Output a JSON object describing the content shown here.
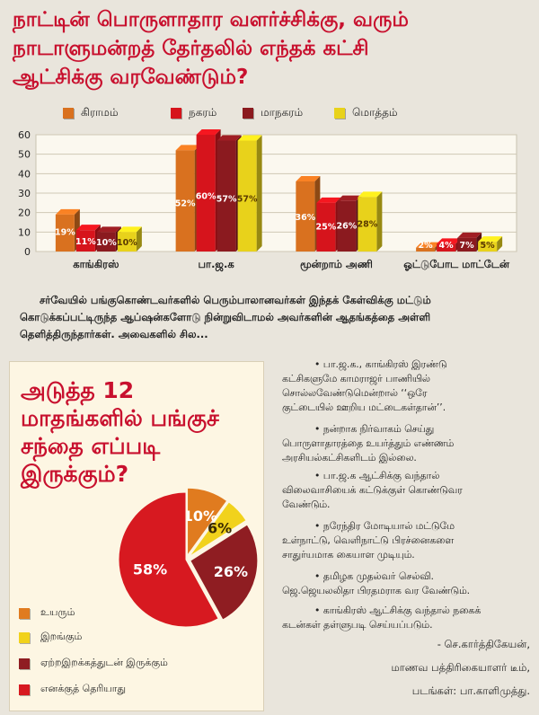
{
  "headline": {
    "line1": "நாட்டின் பொருளாதார வளர்ச்சிக்கு, வரும்",
    "line2": "நாடாளுமன்றத் தேர்தலில் எந்தக் கட்சி",
    "line3": "ஆட்சிக்கு வரவேண்டும்?"
  },
  "chart_data": [
    {
      "type": "bar",
      "title": "நாட்டின் பொருளாதார வளர்ச்சிக்கு, வரும் நாடாளுமன்றத் தேர்தலில் எந்தக் கட்சி ஆட்சிக்கு வரவேண்டும்?",
      "categories": [
        "காங்கிரஸ்",
        "பா.ஜ.க",
        "மூன்றாம் அணி",
        "ஓட்டுபோட மாட்டேன்"
      ],
      "series": [
        {
          "name": "கிராமம்",
          "values": [
            19,
            52,
            36,
            2
          ],
          "color": "#d9711f"
        },
        {
          "name": "நகரம்",
          "values": [
            11,
            60,
            25,
            4
          ],
          "color": "#d6141c"
        },
        {
          "name": "மாநகரம்",
          "values": [
            10,
            57,
            26,
            7
          ],
          "color": "#8b1a1f"
        },
        {
          "name": "மொத்தம்",
          "values": [
            10,
            57,
            28,
            5
          ],
          "color": "#e8d21b"
        }
      ],
      "ylim": [
        0,
        60
      ],
      "yticks": [
        "0",
        "10",
        "20",
        "30",
        "40",
        "50",
        "60"
      ],
      "grid": true,
      "legend": "top"
    },
    {
      "type": "pie",
      "title": "அடுத்த 12 மாதங்களில் பங்குச் சந்தை எப்படி இருக்கும்?",
      "slices": [
        {
          "label": "உயரும்",
          "value": 10,
          "display": "10%",
          "color": "#e07b1f"
        },
        {
          "label": "இறங்கும்",
          "value": 6,
          "display": "6%",
          "color": "#f1d21c"
        },
        {
          "label": "ஏற்றஇறக்கத்துடன் இருக்கும்",
          "value": 26,
          "display": "26%",
          "color": "#8f1d22"
        },
        {
          "label": "எனக்குத் தெரியாது",
          "value": 58,
          "display": "58%",
          "color": "#d71920"
        }
      ],
      "legend": "bottom-left"
    }
  ],
  "intro": {
    "line1": "சர்வேயில் பங்குகொண்டவர்களில் பெரும்பாலானவர்கள் இந்தக் கேள்விக்கு மட்டும்",
    "line2": "கொடுக்கப்பட்டிருந்த ஆப்ஷன்களோடு நின்றுவிடாமல் அவர்களின் ஆதங்கத்தை அள்ளி",
    "line3": "தெளித்திருந்தார்கள். அவைகளில் சில..."
  },
  "question2": {
    "line1": "அடுத்த 12",
    "line2": "மாதங்களில் பங்குச்",
    "line3": "சந்தை எப்படி",
    "line4": "இருக்கும்?"
  },
  "bullets": [
    {
      "lines": [
        "• பா.ஜ.க., காங்கிரஸ் இரண்டு",
        "கட்சிகளுமே காமராஜர் பாணியில்",
        "சொல்லவேண்டுமென்றால் ‘‘ஒரே",
        "குட்டையில் ஊறிய மட்டைகள்தான்’’."
      ]
    },
    {
      "lines": [
        "• நன்றாக நிர்வாகம் செய்து",
        "பொருளாதாரத்தை உயர்த்தும் எண்ணம்",
        "அரசியல்கட்சிகளிடம் இல்லை."
      ]
    },
    {
      "lines": [
        "• பா.ஜ.க ஆட்சிக்கு வந்தால்",
        "விலைவாசியைக் கட்டுக்குள் கொண்டுவர",
        "வேண்டும்."
      ]
    },
    {
      "lines": [
        "• நரேந்திர மோடியால் மட்டுமே",
        "உள்நாட்டு, வெளிநாட்டு பிரச்னைகளை",
        "சாதுர்யமாக கையாள முடியும்."
      ]
    },
    {
      "lines": [
        "• தமிழக முதல்வர் செல்வி.",
        "ஜெ.ஜெயலலிதா பிரதமராக வர வேண்டும்."
      ]
    },
    {
      "lines": [
        "• காங்கிரஸ் ஆட்சிக்கு வந்தால் நகைக்",
        "கடன்கள் தள்ளுபடி செய்யப்படும்."
      ]
    }
  ],
  "credits": {
    "author": "- செ.கார்த்திகேயன்,",
    "team": "மாணவ பத்திரிகையாளர் டீம்,",
    "photos": "படங்கள்: பா.காளிமுத்து."
  }
}
